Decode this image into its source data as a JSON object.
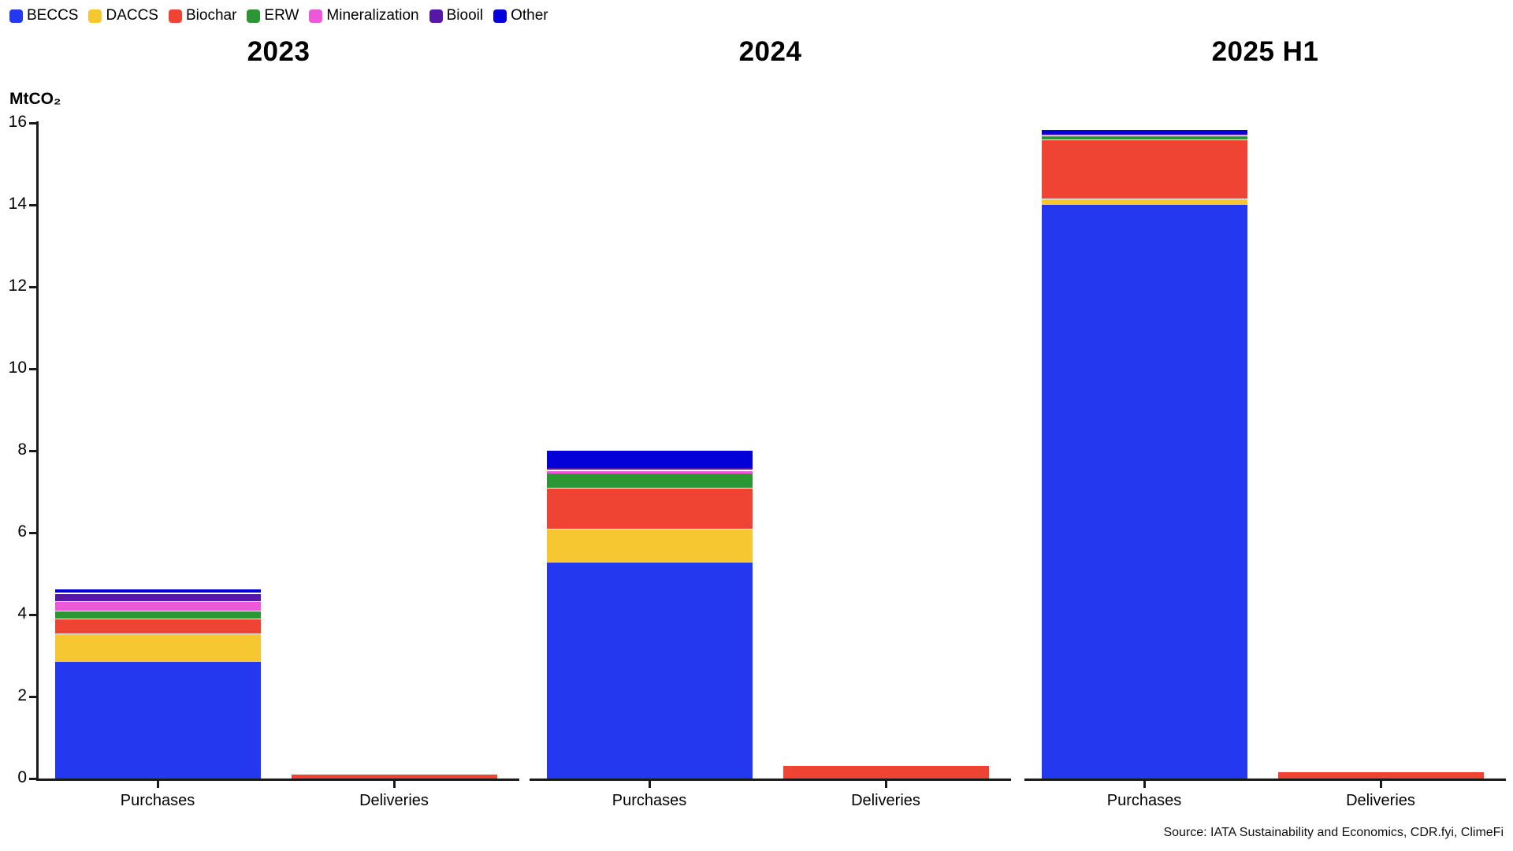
{
  "legend": {
    "items": [
      {
        "label": "BECCS",
        "color": "#2438F0"
      },
      {
        "label": "DACCS",
        "color": "#F7C732"
      },
      {
        "label": "Biochar",
        "color": "#EF4433"
      },
      {
        "label": "ERW",
        "color": "#2B9734"
      },
      {
        "label": "Mineralization",
        "color": "#EE58D8"
      },
      {
        "label": "Biooil",
        "color": "#5617A6"
      },
      {
        "label": "Other",
        "color": "#0401D8"
      }
    ]
  },
  "source": "Source: IATA Sustainability and Economics, CDR.fyi, ClimeFi",
  "chart_data": {
    "type": "bar",
    "subtype": "stacked-grouped-panels",
    "ylabel": "MtCO₂",
    "ylim": [
      0,
      16
    ],
    "yticks": [
      0,
      2,
      4,
      6,
      8,
      10,
      12,
      14,
      16
    ],
    "grid": false,
    "legend_position": "top-left",
    "series_keys": [
      "BECCS",
      "DACCS",
      "Biochar",
      "ERW",
      "Mineralization",
      "Biooil",
      "Other"
    ],
    "series_colors": [
      "#2438F0",
      "#F7C732",
      "#EF4433",
      "#2B9734",
      "#EE58D8",
      "#5617A6",
      "#0401D8"
    ],
    "panels": [
      {
        "title": "2023",
        "categories": [
          "Purchases",
          "Deliveries"
        ],
        "values": {
          "Purchases": [
            2.84,
            0.69,
            0.37,
            0.2,
            0.23,
            0.2,
            0.1
          ],
          "Deliveries": [
            0,
            0,
            0.09,
            0,
            0,
            0,
            0
          ]
        },
        "totals": {
          "Purchases": 4.63,
          "Deliveries": 0.09
        }
      },
      {
        "title": "2024",
        "categories": [
          "Purchases",
          "Deliveries"
        ],
        "values": {
          "Purchases": [
            5.26,
            0.83,
            1.0,
            0.36,
            0.08,
            0.04,
            0.45
          ],
          "Deliveries": [
            0,
            0,
            0.3,
            0,
            0,
            0,
            0
          ]
        },
        "totals": {
          "Purchases": 8.02,
          "Deliveries": 0.3
        }
      },
      {
        "title": "2025 H1",
        "categories": [
          "Purchases",
          "Deliveries"
        ],
        "values": {
          "Purchases": [
            14.0,
            0.15,
            1.44,
            0.1,
            0.02,
            0.02,
            0.11
          ],
          "Deliveries": [
            0,
            0,
            0.15,
            0,
            0,
            0,
            0
          ]
        },
        "totals": {
          "Purchases": 15.84,
          "Deliveries": 0.15
        }
      }
    ]
  }
}
